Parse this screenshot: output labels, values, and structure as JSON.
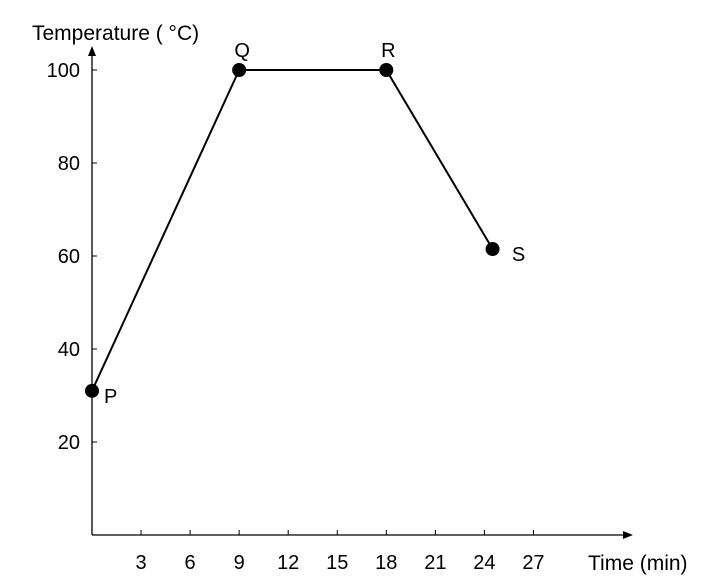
{
  "chart_data": {
    "type": "line",
    "title": "",
    "ylabel": "Temperature ( °C)",
    "xlabel": "Time (min)",
    "x_ticks": [
      3,
      6,
      9,
      12,
      15,
      18,
      21,
      24,
      27
    ],
    "x_tick_labels": [
      "3",
      "6",
      "9",
      "12",
      "15",
      "18",
      "21",
      "24",
      "27"
    ],
    "y_ticks": [
      20,
      40,
      60,
      80,
      100
    ],
    "y_tick_labels": [
      "20",
      "40",
      "60",
      "80",
      "100"
    ],
    "xlim": [
      0,
      30
    ],
    "ylim": [
      0,
      110
    ],
    "grid": false,
    "series": [
      {
        "points": [
          {
            "label": "P",
            "x": 0,
            "y": 31
          },
          {
            "label": "Q",
            "x": 9,
            "y": 100
          },
          {
            "label": "R",
            "x": 18,
            "y": 100
          },
          {
            "label": "S",
            "x": 24.5,
            "y": 61.5
          }
        ]
      }
    ]
  }
}
